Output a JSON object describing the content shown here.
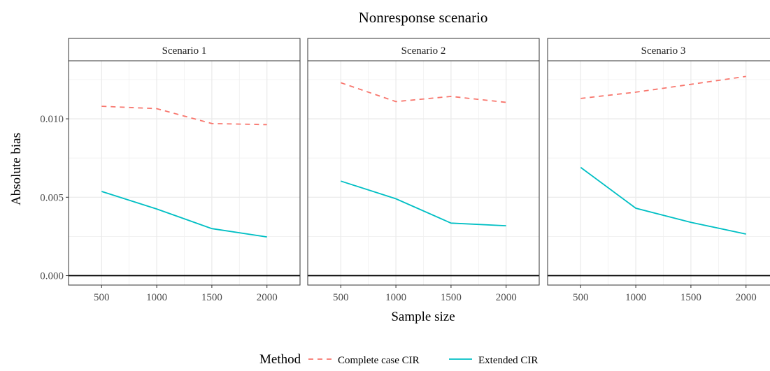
{
  "chart_data": {
    "type": "line",
    "title": "Nonresponse scenario",
    "xlabel": "Sample size",
    "ylabel": "Absolute bias",
    "x_ticks": [
      500,
      1000,
      1500,
      2000
    ],
    "y_ticks": [
      0.0,
      0.005,
      0.01
    ],
    "y_tick_labels": [
      "0.000",
      "0.005",
      "0.010"
    ],
    "xlim": [
      200,
      2300
    ],
    "ylim": [
      -0.0006,
      0.0137
    ],
    "grid": true,
    "reference_line_y": 0,
    "legend": {
      "title": "Method",
      "position": "bottom",
      "entries": [
        {
          "label": "Complete case CIR",
          "color": "#F8766D",
          "dash": "dashed"
        },
        {
          "label": "Extended CIR",
          "color": "#00BFC4",
          "dash": "solid"
        }
      ]
    },
    "panels": [
      {
        "title": "Scenario 1",
        "x": [
          500,
          1000,
          1500,
          2000
        ],
        "series": [
          {
            "name": "Complete case CIR",
            "values": [
              0.0108,
              0.01065,
              0.0097,
              0.00963
            ]
          },
          {
            "name": "Extended CIR",
            "values": [
              0.00537,
              0.00425,
              0.003,
              0.00247
            ]
          }
        ]
      },
      {
        "title": "Scenario 2",
        "x": [
          500,
          1000,
          1500,
          2000
        ],
        "series": [
          {
            "name": "Complete case CIR",
            "values": [
              0.0123,
              0.0111,
              0.01143,
              0.01105
            ]
          },
          {
            "name": "Extended CIR",
            "values": [
              0.00603,
              0.0049,
              0.00335,
              0.00318
            ]
          }
        ]
      },
      {
        "title": "Scenario 3",
        "x": [
          500,
          1000,
          1500,
          2000
        ],
        "series": [
          {
            "name": "Complete case CIR",
            "values": [
              0.0113,
              0.0117,
              0.0122,
              0.0127
            ]
          },
          {
            "name": "Extended CIR",
            "values": [
              0.0069,
              0.0043,
              0.0034,
              0.00265
            ]
          }
        ]
      }
    ]
  }
}
